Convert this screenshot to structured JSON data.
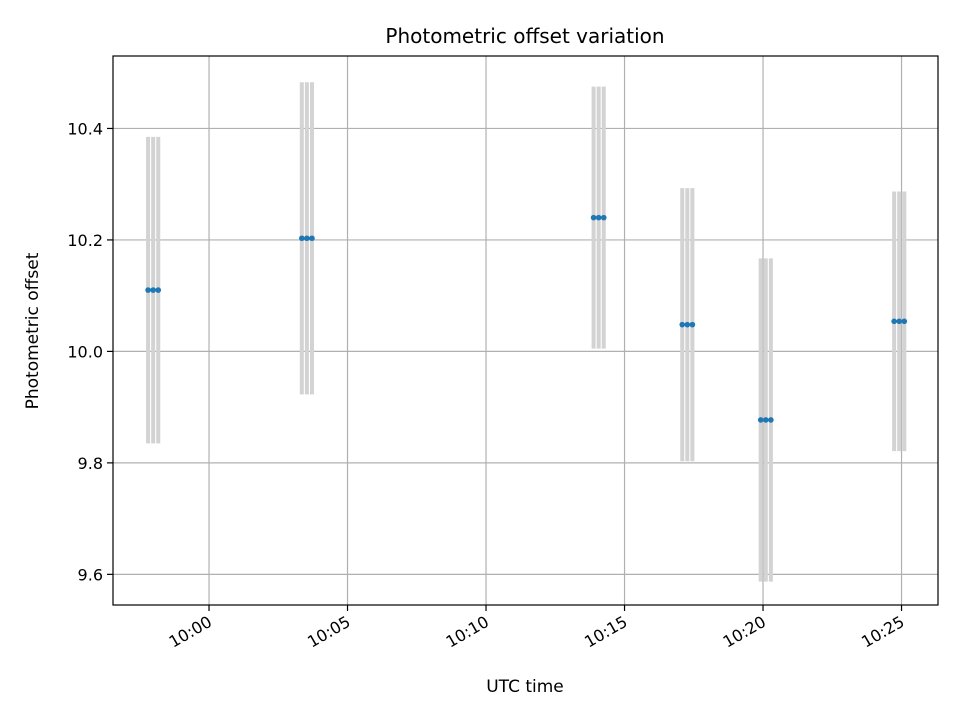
{
  "chart_data": {
    "type": "scatter",
    "title": "Photometric offset variation",
    "xlabel": "UTC time",
    "ylabel": "Photometric offset",
    "x_axis_type": "time",
    "xlim": [
      "09:56:32",
      "10:26:19"
    ],
    "ylim": [
      9.545,
      10.53
    ],
    "x_ticks": [
      "10:00",
      "10:05",
      "10:10",
      "10:15",
      "10:20",
      "10:25"
    ],
    "y_ticks": [
      9.6,
      9.8,
      10.0,
      10.2,
      10.4
    ],
    "y_tick_labels": [
      "9.6",
      "9.8",
      "10.0",
      "10.2",
      "10.4"
    ],
    "grid": true,
    "point_color": "#1f77b4",
    "errorbar_color": "#d3d3d3",
    "groups": [
      {
        "x": [
          "09:57:48",
          "09:57:59",
          "09:58:10"
        ],
        "y": 10.11,
        "err": 0.275
      },
      {
        "x": [
          "10:03:21",
          "10:03:32",
          "10:03:43"
        ],
        "y": 10.203,
        "err": 0.28
      },
      {
        "x": [
          "10:13:53",
          "10:14:04",
          "10:14:15"
        ],
        "y": 10.24,
        "err": 0.235
      },
      {
        "x": [
          "10:17:05",
          "10:17:16",
          "10:17:27"
        ],
        "y": 10.048,
        "err": 0.245
      },
      {
        "x": [
          "10:19:55",
          "10:20:06",
          "10:20:17"
        ],
        "y": 9.877,
        "err": 0.29
      },
      {
        "x": [
          "10:24:44",
          "10:24:55",
          "10:25:06"
        ],
        "y": 10.054,
        "err": 0.233
      }
    ]
  }
}
